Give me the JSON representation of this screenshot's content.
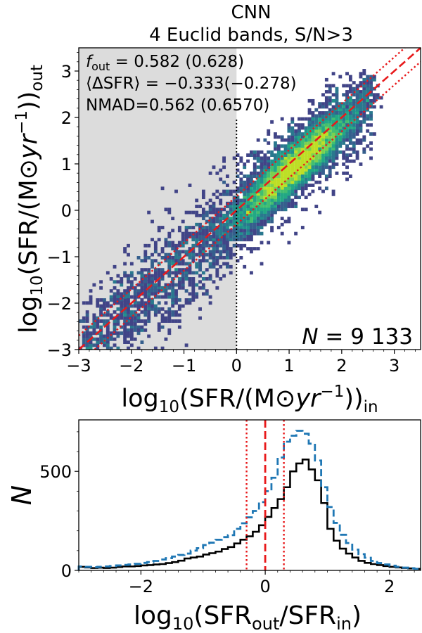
{
  "chart_data": [
    {
      "type": "heatmap",
      "title_line1": "CNN",
      "title_line2": "4 Euclid bands, S/N>3",
      "xlabel_main": "log",
      "xlabel_sub": "10",
      "xlabel_rest": "(SFR/(M",
      "xlabel_sun": "⊙",
      "xlabel_yr": "yr",
      "xlabel_exp": "−1",
      "xlabel_close": "))",
      "xlabel_subscript": "in",
      "ylabel_main": "log",
      "ylabel_sub": "10",
      "ylabel_rest": "(SFR/(M",
      "ylabel_sun": "⊙",
      "ylabel_yr": "yr",
      "ylabel_exp": "−1",
      "ylabel_close": "))",
      "ylabel_subscript": "out",
      "xlim": [
        -3,
        3.5
      ],
      "ylim": [
        -3,
        3.5
      ],
      "xticks": [
        "−3",
        "−2",
        "−1",
        "0",
        "1",
        "2",
        "3"
      ],
      "xtick_values": [
        -3,
        -2,
        -1,
        0,
        1,
        2,
        3
      ],
      "yticks": [
        "−3",
        "−2",
        "−1",
        "0",
        "1",
        "2",
        "3"
      ],
      "ytick_values": [
        -3,
        -2,
        -1,
        0,
        1,
        2,
        3
      ],
      "shaded_region": {
        "x": [
          -3,
          0
        ],
        "y": [
          -3,
          3.5
        ],
        "color": "#dcdcdc"
      },
      "one_to_one_line": {
        "color": "#e8191b",
        "style": "dashed"
      },
      "outlier_offset_dex": 0.3,
      "colormap": "viridis",
      "stats": {
        "f_out_label": "f",
        "f_out_sub": "out",
        "f_out_text": " = 0.582 (0.628)",
        "dsfr_text": "⟨ΔSFR⟩ = −0.333(−0.278)",
        "nmad_text": "NMAD=0.562 (0.6570)"
      },
      "n_label": "N",
      "n_value": " = 9 133"
    },
    {
      "type": "histogram",
      "xlabel_main": "log",
      "xlabel_sub": "10",
      "xlabel_open": "(SFR",
      "xlabel_sub_out": "out",
      "xlabel_mid": "/SFR",
      "xlabel_sub_in": "in",
      "xlabel_close": ")",
      "ylabel": "N",
      "xlim": [
        -3,
        2.5
      ],
      "ylim": [
        0,
        760
      ],
      "xticks": [
        "−2",
        "0",
        "2"
      ],
      "xtick_values": [
        -2,
        0,
        2
      ],
      "yticks": [
        "0",
        "500"
      ],
      "ytick_values": [
        0,
        500
      ],
      "bin_edges_start": -3.0,
      "bin_width": 0.1,
      "series": [
        {
          "name": "black-solid",
          "color": "#000000",
          "style": "solid",
          "values": [
            18,
            15,
            12,
            14,
            12,
            14,
            17,
            20,
            20,
            22,
            25,
            27,
            30,
            32,
            37,
            42,
            49,
            60,
            65,
            70,
            80,
            87,
            95,
            108,
            118,
            136,
            155,
            172,
            195,
            228,
            270,
            315,
            360,
            420,
            500,
            540,
            560,
            510,
            455,
            340,
            210,
            150,
            110,
            85,
            65,
            48,
            38,
            32,
            27,
            22,
            18,
            15,
            12,
            10,
            8
          ]
        },
        {
          "name": "blue-dashed",
          "color": "#1f77b4",
          "style": "dashed",
          "values": [
            20,
            18,
            16,
            18,
            20,
            22,
            25,
            28,
            30,
            33,
            38,
            42,
            48,
            55,
            62,
            70,
            78,
            85,
            100,
            112,
            128,
            140,
            155,
            168,
            178,
            210,
            238,
            268,
            300,
            345,
            400,
            468,
            570,
            650,
            680,
            705,
            690,
            640,
            555,
            420,
            320,
            240,
            180,
            138,
            105,
            82,
            64,
            48,
            37,
            30,
            24,
            18,
            14,
            11,
            8
          ]
        }
      ],
      "vlines": [
        {
          "x": 0,
          "color": "#e8191b",
          "style": "dashed"
        },
        {
          "x": -0.3,
          "color": "#e8191b",
          "style": "dotted"
        },
        {
          "x": 0.3,
          "color": "#e8191b",
          "style": "dotted"
        }
      ]
    }
  ]
}
